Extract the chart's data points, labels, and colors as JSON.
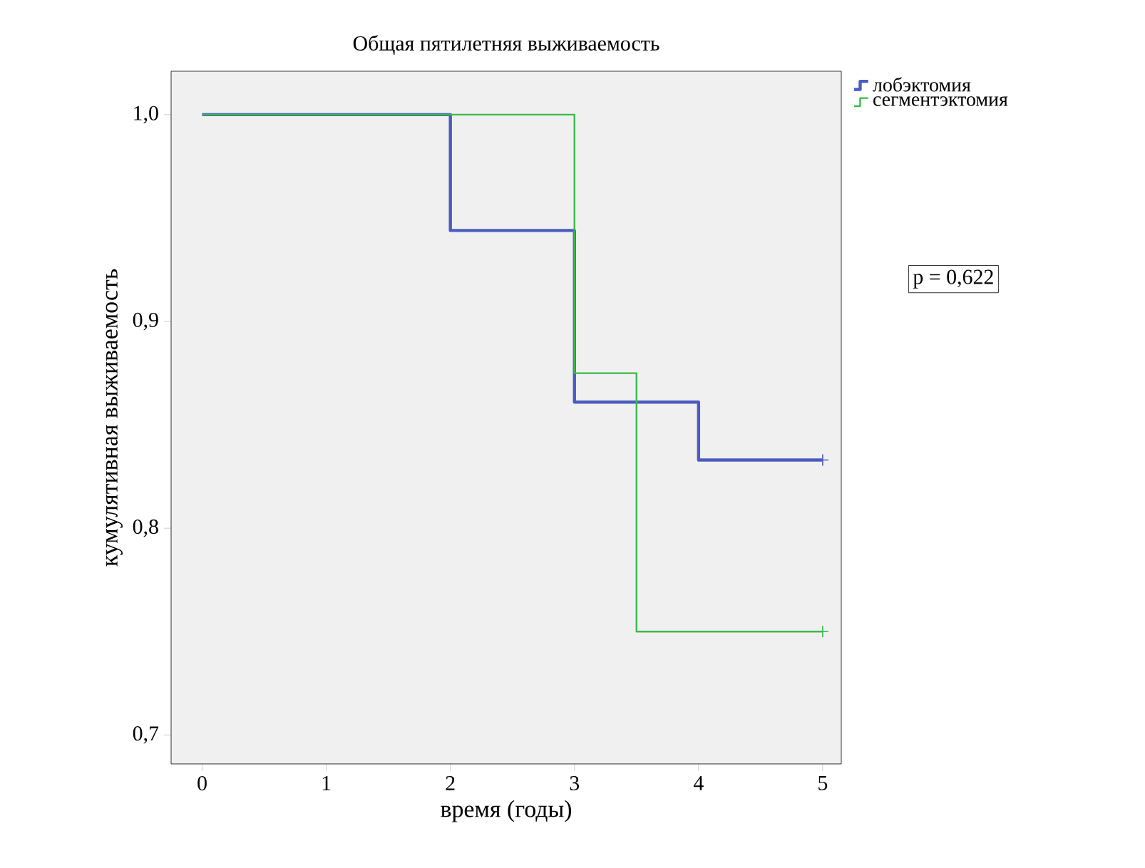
{
  "chart_data": {
    "type": "step",
    "title": "Общая пятилетняя выживаемость",
    "xlabel": "время (годы)",
    "ylabel": "кумулятивная выживаемость",
    "series": [
      {
        "name": "лобэктомия",
        "color": "#4a5cc0",
        "x": [
          0,
          2,
          3,
          4,
          5
        ],
        "values": [
          1.0,
          0.944,
          0.861,
          0.833,
          0.833
        ]
      },
      {
        "name": "сегментэктомия",
        "color": "#3cb84a",
        "x": [
          0,
          3,
          3.5,
          5
        ],
        "values": [
          1.0,
          0.875,
          0.75,
          0.75
        ]
      },
      {
        "type": "scatter",
        "marker": "cross",
        "color": "#4a5cc0",
        "x": [
          5
        ],
        "values": [
          0.833
        ]
      },
      {
        "type": "scatter",
        "marker": "cross",
        "color": "#3cb84a",
        "x": [
          5
        ],
        "values": [
          0.75
        ]
      }
    ],
    "xlim": [
      -0.25,
      5.15
    ],
    "ylim": [
      0.686,
      1.021
    ],
    "xticks": [
      0,
      1,
      2,
      3,
      4,
      5
    ],
    "yticks": [
      {
        "value": 0.7,
        "label": "0,7"
      },
      {
        "value": 0.8,
        "label": "0,8"
      },
      {
        "value": 0.9,
        "label": "0,9"
      },
      {
        "value": 1.0,
        "label": "1,0"
      }
    ],
    "annotations": [
      "p = 0,622"
    ],
    "legend": "top right",
    "grid": false,
    "marker": "none"
  }
}
